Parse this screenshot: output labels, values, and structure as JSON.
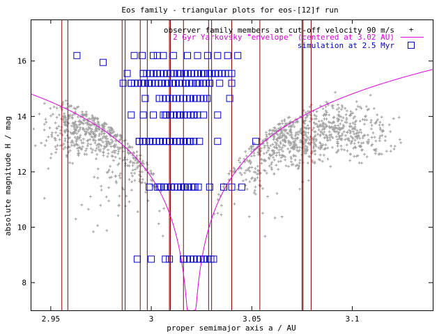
{
  "chart_data": {
    "type": "scatter",
    "title": "Eos family - triangular plots for eos-[12]f run",
    "xlabel": "proper semimajor axis a / AU",
    "ylabel": "absolute magnitude H / mag",
    "xlim": [
      2.94,
      3.14
    ],
    "ylim": [
      7,
      17.5
    ],
    "x_ticks": [
      {
        "v": 2.95,
        "label": "2.95"
      },
      {
        "v": 3.0,
        "label": "3"
      },
      {
        "v": 3.05,
        "label": "3.05"
      },
      {
        "v": 3.1,
        "label": "3.1"
      }
    ],
    "y_ticks": [
      {
        "v": 8,
        "label": "8"
      },
      {
        "v": 10,
        "label": "10"
      },
      {
        "v": 12,
        "label": "12"
      },
      {
        "v": 14,
        "label": "14"
      },
      {
        "v": 16,
        "label": "16"
      }
    ],
    "grid": false,
    "legend_position": "top-right",
    "colors": {
      "observed": "#a0a0a0",
      "envelope": "#e000e0",
      "simulation": "#0000cc",
      "resonance": "#8b0000"
    },
    "series": [
      {
        "name": "observer family members at cut-off velocity 90 m/s",
        "kind": "points",
        "marker": "+",
        "clusters": [
          {
            "x_center": 2.975,
            "x_spread": 0.014,
            "y_center": 13.6,
            "y_spread": 0.55,
            "count": 700
          },
          {
            "x_center": 3.0,
            "x_spread": 0.012,
            "y_center": 13.0,
            "y_spread": 0.8,
            "count": 450
          },
          {
            "x_center": 3.03,
            "x_spread": 0.015,
            "y_center": 12.8,
            "y_spread": 0.8,
            "count": 450
          },
          {
            "x_center": 3.065,
            "x_spread": 0.012,
            "y_center": 13.3,
            "y_spread": 0.6,
            "count": 500
          },
          {
            "x_center": 3.095,
            "x_spread": 0.012,
            "y_center": 13.5,
            "y_spread": 0.5,
            "count": 350
          },
          {
            "x_center": 3.015,
            "x_spread": 0.03,
            "y_center": 11.5,
            "y_spread": 0.9,
            "count": 120
          }
        ]
      },
      {
        "name": "2 Gyr Yarkovsky \"envelope\" (centered at 3.02 AU)",
        "kind": "curve",
        "center": 3.02,
        "x_range": [
          2.94,
          3.14
        ]
      },
      {
        "name": "simulation at 2.5 Myr",
        "kind": "points",
        "marker": "square",
        "points": [
          [
            2.963,
            16.2
          ],
          [
            2.976,
            15.95
          ],
          [
            2.9915,
            16.2
          ],
          [
            2.9955,
            16.2
          ],
          [
            3.001,
            16.2
          ],
          [
            3.003,
            16.2
          ],
          [
            3.006,
            16.2
          ],
          [
            3.011,
            16.2
          ],
          [
            3.018,
            16.2
          ],
          [
            3.023,
            16.2
          ],
          [
            3.028,
            16.2
          ],
          [
            3.033,
            16.2
          ],
          [
            3.038,
            16.2
          ],
          [
            3.043,
            16.2
          ],
          [
            2.988,
            15.55
          ],
          [
            2.996,
            15.55
          ],
          [
            3.003,
            15.55
          ],
          [
            3.008,
            15.55
          ],
          [
            3.014,
            15.55
          ],
          [
            3.02,
            15.55
          ],
          [
            3.026,
            15.55
          ],
          [
            3.032,
            15.55
          ],
          [
            3.04,
            15.55
          ],
          [
            2.986,
            15.2
          ],
          [
            2.99,
            15.2
          ],
          [
            2.999,
            15.2
          ],
          [
            3.005,
            15.2
          ],
          [
            3.011,
            15.2
          ],
          [
            3.017,
            15.2
          ],
          [
            3.023,
            15.2
          ],
          [
            3.029,
            15.2
          ],
          [
            3.034,
            15.2
          ],
          [
            3.04,
            15.2
          ],
          [
            2.997,
            14.65
          ],
          [
            3.004,
            14.65
          ],
          [
            3.011,
            14.65
          ],
          [
            3.019,
            14.65
          ],
          [
            3.026,
            14.65
          ],
          [
            3.039,
            14.65
          ],
          [
            2.99,
            14.05
          ],
          [
            2.996,
            14.05
          ],
          [
            3.001,
            14.05
          ],
          [
            3.007,
            14.05
          ],
          [
            3.014,
            14.05
          ],
          [
            3.021,
            14.05
          ],
          [
            3.026,
            14.05
          ],
          [
            3.033,
            14.05
          ],
          [
            2.994,
            13.1
          ],
          [
            2.999,
            13.1
          ],
          [
            3.004,
            13.1
          ],
          [
            3.009,
            13.1
          ],
          [
            3.014,
            13.1
          ],
          [
            3.019,
            13.1
          ],
          [
            3.024,
            13.1
          ],
          [
            3.033,
            13.1
          ],
          [
            3.052,
            13.1
          ],
          [
            2.999,
            11.45
          ],
          [
            3.004,
            11.45
          ],
          [
            3.01,
            11.45
          ],
          [
            3.016,
            11.45
          ],
          [
            3.021,
            11.45
          ],
          [
            3.029,
            11.45
          ],
          [
            3.036,
            11.45
          ],
          [
            3.04,
            11.45
          ],
          [
            3.045,
            11.45
          ],
          [
            2.993,
            8.85
          ],
          [
            3.0,
            8.85
          ],
          [
            3.007,
            8.85
          ],
          [
            3.009,
            8.85
          ],
          [
            3.016,
            8.85
          ],
          [
            3.021,
            8.85
          ],
          [
            3.026,
            8.85
          ],
          [
            3.031,
            8.85
          ]
        ],
        "row_ranges": [
          {
            "y": 15.55,
            "x_from": 2.996,
            "x_to": 3.04
          },
          {
            "y": 15.2,
            "x_from": 2.99,
            "x_to": 3.03
          },
          {
            "y": 14.65,
            "x_from": 3.004,
            "x_to": 3.029
          },
          {
            "y": 14.05,
            "x_from": 3.006,
            "x_to": 3.024
          },
          {
            "y": 13.1,
            "x_from": 2.994,
            "x_to": 3.022
          },
          {
            "y": 11.45,
            "x_from": 3.003,
            "x_to": 3.024
          },
          {
            "y": 8.85,
            "x_from": 3.016,
            "x_to": 3.031
          }
        ]
      }
    ],
    "vertical_lines": [
      2.9555,
      2.9585,
      2.9855,
      2.987,
      2.9945,
      2.998,
      3.009,
      3.0095,
      3.016,
      3.0285,
      3.03,
      3.04,
      3.054,
      3.075,
      3.0755,
      3.0795
    ]
  }
}
